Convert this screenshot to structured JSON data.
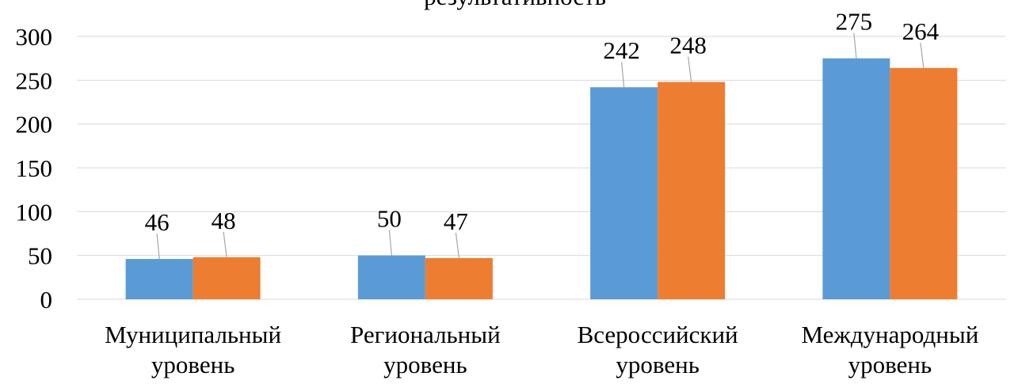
{
  "chart_data": {
    "type": "bar",
    "title": "результативность",
    "categories": [
      "Муниципальный уровень",
      "Региональный уровень",
      "Всероссийский уровень",
      "Международный уровень"
    ],
    "series": [
      {
        "color": "#5b9bd5",
        "values": [
          46,
          50,
          242,
          275
        ]
      },
      {
        "color": "#ed7d31",
        "values": [
          48,
          47,
          248,
          264
        ]
      }
    ],
    "ylim": [
      0,
      300
    ],
    "yticks": [
      0,
      50,
      100,
      150,
      200,
      250,
      300
    ],
    "grid": true
  }
}
